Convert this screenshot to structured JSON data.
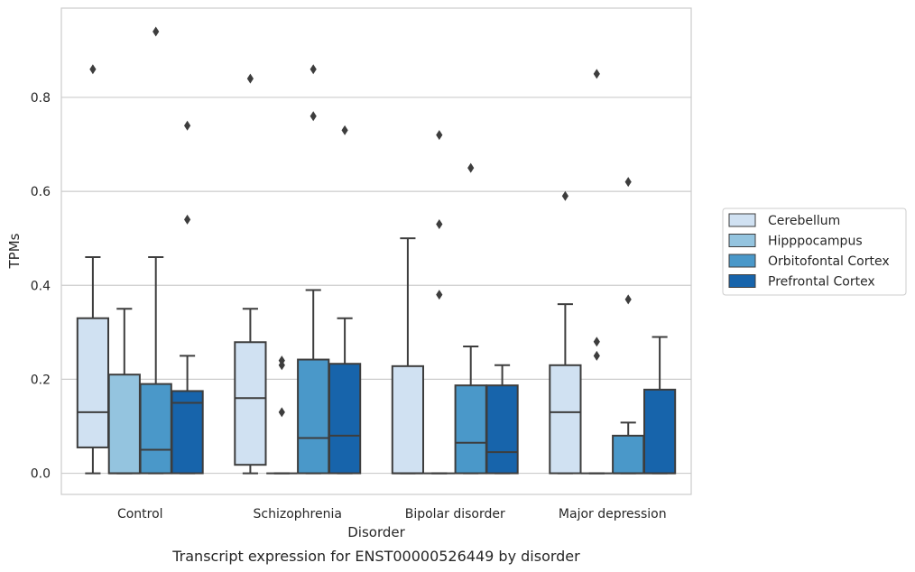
{
  "caption": "Transcript expression for ENST00000526449 by disorder",
  "chart_data": {
    "type": "box",
    "title": "",
    "xlabel": "Disorder",
    "ylabel": "TPMs",
    "ylim": [
      -0.045,
      0.99
    ],
    "yticks": [
      "0.0",
      "0.2",
      "0.4",
      "0.6",
      "0.8"
    ],
    "ytick_values": [
      0.0,
      0.2,
      0.4,
      0.6,
      0.8
    ],
    "grid": "horizontal",
    "legend_position": "right",
    "categories": [
      "Control",
      "Schizophrenia",
      "Bipolar disorder",
      "Major depression"
    ],
    "series": [
      {
        "name": "Cerebellum",
        "color": "#d0e1f2",
        "boxes": [
          {
            "q1": 0.055,
            "median": 0.13,
            "q3": 0.33,
            "whisker_low": 0.0,
            "whisker_high": 0.46,
            "outliers": [
              0.86
            ]
          },
          {
            "q1": 0.018,
            "median": 0.16,
            "q3": 0.279,
            "whisker_low": 0.0,
            "whisker_high": 0.35,
            "outliers": [
              0.84
            ]
          },
          {
            "q1": 0.0,
            "median": 0.0,
            "q3": 0.228,
            "whisker_low": 0.0,
            "whisker_high": 0.5,
            "outliers": []
          },
          {
            "q1": 0.0,
            "median": 0.13,
            "q3": 0.23,
            "whisker_low": 0.0,
            "whisker_high": 0.36,
            "outliers": [
              0.59
            ]
          }
        ]
      },
      {
        "name": "Hipppocampus",
        "color": "#94c4df",
        "boxes": [
          {
            "q1": 0.0,
            "median": 0.0,
            "q3": 0.21,
            "whisker_low": 0.0,
            "whisker_high": 0.35,
            "outliers": []
          },
          {
            "q1": 0.0,
            "median": 0.0,
            "q3": 0.0,
            "whisker_low": 0.0,
            "whisker_high": 0.0,
            "outliers": [
              0.13,
              0.23,
              0.24
            ]
          },
          {
            "q1": 0.0,
            "median": 0.0,
            "q3": 0.0,
            "whisker_low": 0.0,
            "whisker_high": 0.0,
            "outliers": [
              0.38,
              0.53,
              0.72
            ]
          },
          {
            "q1": 0.0,
            "median": 0.0,
            "q3": 0.0,
            "whisker_low": 0.0,
            "whisker_high": 0.0,
            "outliers": [
              0.25,
              0.28,
              0.85
            ]
          }
        ]
      },
      {
        "name": "Orbitofontal Cortex",
        "color": "#4a98c9",
        "boxes": [
          {
            "q1": 0.0,
            "median": 0.05,
            "q3": 0.19,
            "whisker_low": 0.0,
            "whisker_high": 0.46,
            "outliers": [
              0.94
            ]
          },
          {
            "q1": 0.0,
            "median": 0.075,
            "q3": 0.242,
            "whisker_low": 0.0,
            "whisker_high": 0.39,
            "outliers": [
              0.76,
              0.86
            ]
          },
          {
            "q1": 0.0,
            "median": 0.065,
            "q3": 0.187,
            "whisker_low": 0.0,
            "whisker_high": 0.27,
            "outliers": [
              0.65
            ]
          },
          {
            "q1": 0.0,
            "median": 0.0,
            "q3": 0.08,
            "whisker_low": 0.0,
            "whisker_high": 0.108,
            "outliers": [
              0.37,
              0.62
            ]
          }
        ]
      },
      {
        "name": "Prefrontal Cortex",
        "color": "#1764ab",
        "boxes": [
          {
            "q1": 0.0,
            "median": 0.15,
            "q3": 0.175,
            "whisker_low": 0.0,
            "whisker_high": 0.25,
            "outliers": [
              0.54,
              0.74
            ]
          },
          {
            "q1": 0.0,
            "median": 0.08,
            "q3": 0.233,
            "whisker_low": 0.0,
            "whisker_high": 0.33,
            "outliers": [
              0.73
            ]
          },
          {
            "q1": 0.0,
            "median": 0.045,
            "q3": 0.187,
            "whisker_low": 0.0,
            "whisker_high": 0.23,
            "outliers": []
          },
          {
            "q1": 0.0,
            "median": 0.0,
            "q3": 0.178,
            "whisker_low": 0.0,
            "whisker_high": 0.29,
            "outliers": []
          }
        ]
      }
    ]
  }
}
